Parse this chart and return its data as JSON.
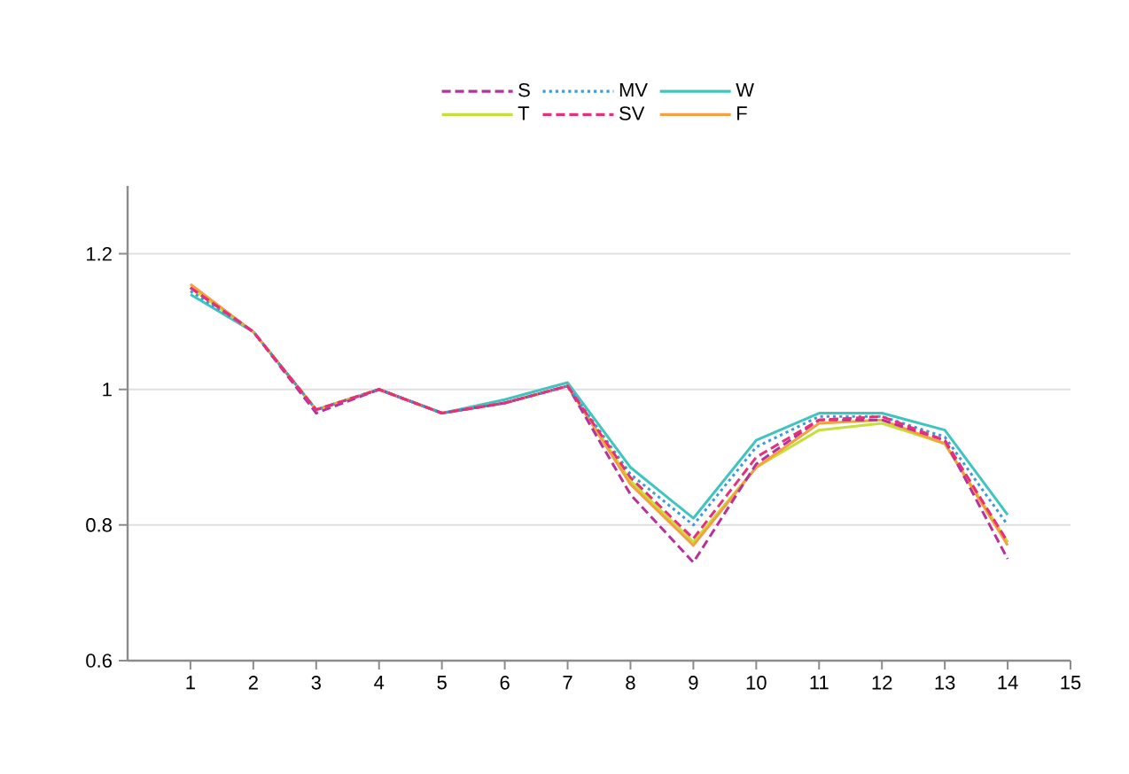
{
  "chart_data": {
    "type": "line",
    "x": [
      1,
      2,
      3,
      4,
      5,
      6,
      7,
      8,
      9,
      10,
      11,
      12,
      13,
      14
    ],
    "xlim": [
      0,
      15
    ],
    "xticks": [
      1,
      2,
      3,
      4,
      5,
      6,
      7,
      8,
      9,
      10,
      11,
      12,
      13,
      14,
      15
    ],
    "ylim": [
      0.6,
      1.3
    ],
    "yticks": [
      0.6,
      0.8,
      1,
      1.2
    ],
    "grid": "y",
    "legend": "top",
    "marker": "none",
    "series": [
      {
        "name": "S",
        "color": "#b5329a",
        "line_style": "dashed",
        "values": [
          1.15,
          1.085,
          0.965,
          1.0,
          0.965,
          0.98,
          1.005,
          0.845,
          0.745,
          0.89,
          0.955,
          0.955,
          0.925,
          0.75
        ]
      },
      {
        "name": "MV",
        "color": "#3a9bd5",
        "line_style": "dotted",
        "values": [
          1.145,
          1.085,
          0.97,
          1.0,
          0.965,
          0.98,
          1.005,
          0.875,
          0.8,
          0.915,
          0.96,
          0.96,
          0.93,
          0.8
        ]
      },
      {
        "name": "W",
        "color": "#40c4c0",
        "line_style": "solid",
        "values": [
          1.14,
          1.085,
          0.97,
          1.0,
          0.965,
          0.985,
          1.01,
          0.885,
          0.81,
          0.925,
          0.965,
          0.965,
          0.94,
          0.815
        ]
      },
      {
        "name": "T",
        "color": "#c5e03a",
        "line_style": "solid",
        "values": [
          1.15,
          1.085,
          0.97,
          1.0,
          0.965,
          0.98,
          1.005,
          0.865,
          0.775,
          0.885,
          0.94,
          0.95,
          0.92,
          0.775
        ]
      },
      {
        "name": "SV",
        "color": "#e8307a",
        "line_style": "dashed",
        "values": [
          1.15,
          1.085,
          0.97,
          1.0,
          0.965,
          0.98,
          1.005,
          0.87,
          0.78,
          0.9,
          0.955,
          0.96,
          0.925,
          0.775
        ]
      },
      {
        "name": "F",
        "color": "#f5a040",
        "line_style": "solid",
        "values": [
          1.155,
          1.085,
          0.97,
          1.0,
          0.965,
          0.98,
          1.005,
          0.86,
          0.77,
          0.885,
          0.95,
          0.955,
          0.92,
          0.77
        ]
      }
    ]
  }
}
